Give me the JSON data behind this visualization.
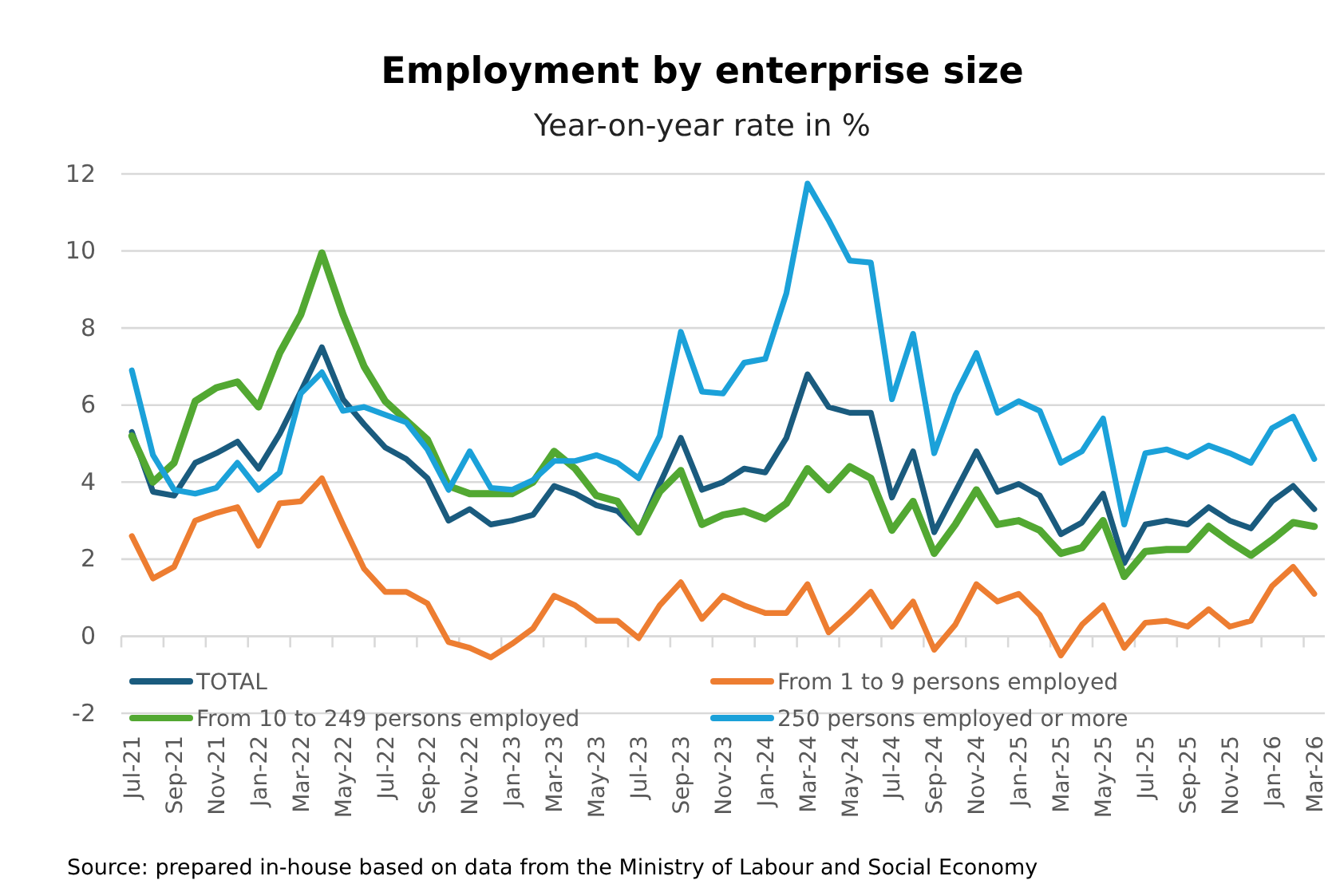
{
  "chart_data": {
    "type": "line",
    "title": "Employment by enterprise size",
    "subtitle": "Year-on-year rate in %",
    "categories": [
      "Jul-21",
      null,
      "Sep-21",
      null,
      "Nov-21",
      null,
      "Jan-22",
      null,
      "Mar-22",
      null,
      "May-22",
      null,
      "Jul-22",
      null,
      "Sep-22",
      null,
      "Nov-22",
      null,
      "Jan-23",
      null,
      "Mar-23",
      null,
      "May-23",
      null,
      "Jul-23",
      null,
      "Sep-23",
      null,
      "Nov-23",
      null,
      "Jan-24",
      null,
      "Mar-24",
      null,
      "May-24",
      null,
      "Jul-24",
      null,
      "Sep-24",
      null,
      "Nov-24",
      null,
      "Jan-25",
      null,
      "Mar-25",
      null,
      "May-25",
      null,
      "Jul-25",
      null,
      "Sep-25",
      null,
      "Nov-25",
      null,
      "Jan-26",
      null,
      "Mar-26"
    ],
    "series": [
      {
        "name": "TOTAL",
        "color": "#1a5b7e",
        "values": [
          5.3,
          3.75,
          3.65,
          4.5,
          4.75,
          5.05,
          4.35,
          5.25,
          6.35,
          7.5,
          6.15,
          5.5,
          4.9,
          4.6,
          4.1,
          3.0,
          3.3,
          2.9,
          3.0,
          3.15,
          3.9,
          3.7,
          3.4,
          3.25,
          2.7,
          3.95,
          5.15,
          3.8,
          4.0,
          4.35,
          4.25,
          5.15,
          6.8,
          5.95,
          5.8,
          5.8,
          3.6,
          4.8,
          2.7,
          3.75,
          4.8,
          3.75,
          3.95,
          3.65,
          2.65,
          2.95,
          3.7,
          1.9,
          2.9,
          3.0,
          2.9,
          3.35,
          3.0,
          2.8,
          3.5,
          3.9,
          3.3
        ]
      },
      {
        "name": "From 1 to 9 persons employed",
        "color": "#ed7d31",
        "values": [
          2.6,
          1.5,
          1.8,
          3.0,
          3.2,
          3.35,
          2.35,
          3.45,
          3.5,
          4.1,
          2.9,
          1.75,
          1.15,
          1.15,
          0.85,
          -0.15,
          -0.3,
          -0.55,
          -0.2,
          0.2,
          1.05,
          0.8,
          0.4,
          0.4,
          -0.05,
          0.8,
          1.4,
          0.45,
          1.05,
          0.8,
          0.6,
          0.6,
          1.35,
          0.1,
          0.6,
          1.15,
          0.25,
          0.9,
          -0.35,
          0.3,
          1.35,
          0.9,
          1.1,
          0.55,
          -0.5,
          0.3,
          0.8,
          -0.3,
          0.35,
          0.4,
          0.25,
          0.7,
          0.25,
          0.4,
          1.3,
          1.8,
          1.1
        ]
      },
      {
        "name": "From 10 to 249 persons employed",
        "color": "#52a832",
        "values": [
          5.2,
          4.0,
          4.5,
          6.1,
          6.45,
          6.6,
          5.95,
          7.35,
          8.35,
          9.95,
          8.35,
          7.0,
          6.1,
          5.6,
          5.1,
          3.9,
          3.7,
          3.7,
          3.7,
          4.0,
          4.8,
          4.35,
          3.65,
          3.5,
          2.7,
          3.75,
          4.3,
          2.9,
          3.15,
          3.25,
          3.05,
          3.45,
          4.35,
          3.8,
          4.4,
          4.1,
          2.75,
          3.5,
          2.15,
          2.9,
          3.8,
          2.9,
          3.0,
          2.75,
          2.15,
          2.3,
          3.0,
          1.55,
          2.2,
          2.25,
          2.25,
          2.85,
          2.45,
          2.1,
          2.5,
          2.95,
          2.85
        ]
      },
      {
        "name": "250 persons employed or more",
        "color": "#1ba1d9",
        "values": [
          6.9,
          4.7,
          3.8,
          3.7,
          3.85,
          4.5,
          3.8,
          4.25,
          6.3,
          6.85,
          5.85,
          5.95,
          5.75,
          5.55,
          4.85,
          3.8,
          4.8,
          3.85,
          3.8,
          4.05,
          4.55,
          4.55,
          4.7,
          4.5,
          4.1,
          5.2,
          7.9,
          6.35,
          6.3,
          7.1,
          7.2,
          8.9,
          11.75,
          10.8,
          9.75,
          9.7,
          6.15,
          7.85,
          4.75,
          6.25,
          7.35,
          5.8,
          6.1,
          5.85,
          4.5,
          4.8,
          5.65,
          2.9,
          4.75,
          4.85,
          4.65,
          4.95,
          4.75,
          4.5,
          5.4,
          5.7,
          4.6
        ]
      }
    ],
    "ylim": [
      -2,
      12
    ],
    "yticks": [
      -2,
      0,
      2,
      4,
      6,
      8,
      10,
      12
    ],
    "grid": "y",
    "legend": "bottom",
    "marker": "none",
    "line_style": "solid",
    "annotations": [
      "Source: prepared in-house based on data from the Ministry of Labour and Social Economy"
    ]
  }
}
